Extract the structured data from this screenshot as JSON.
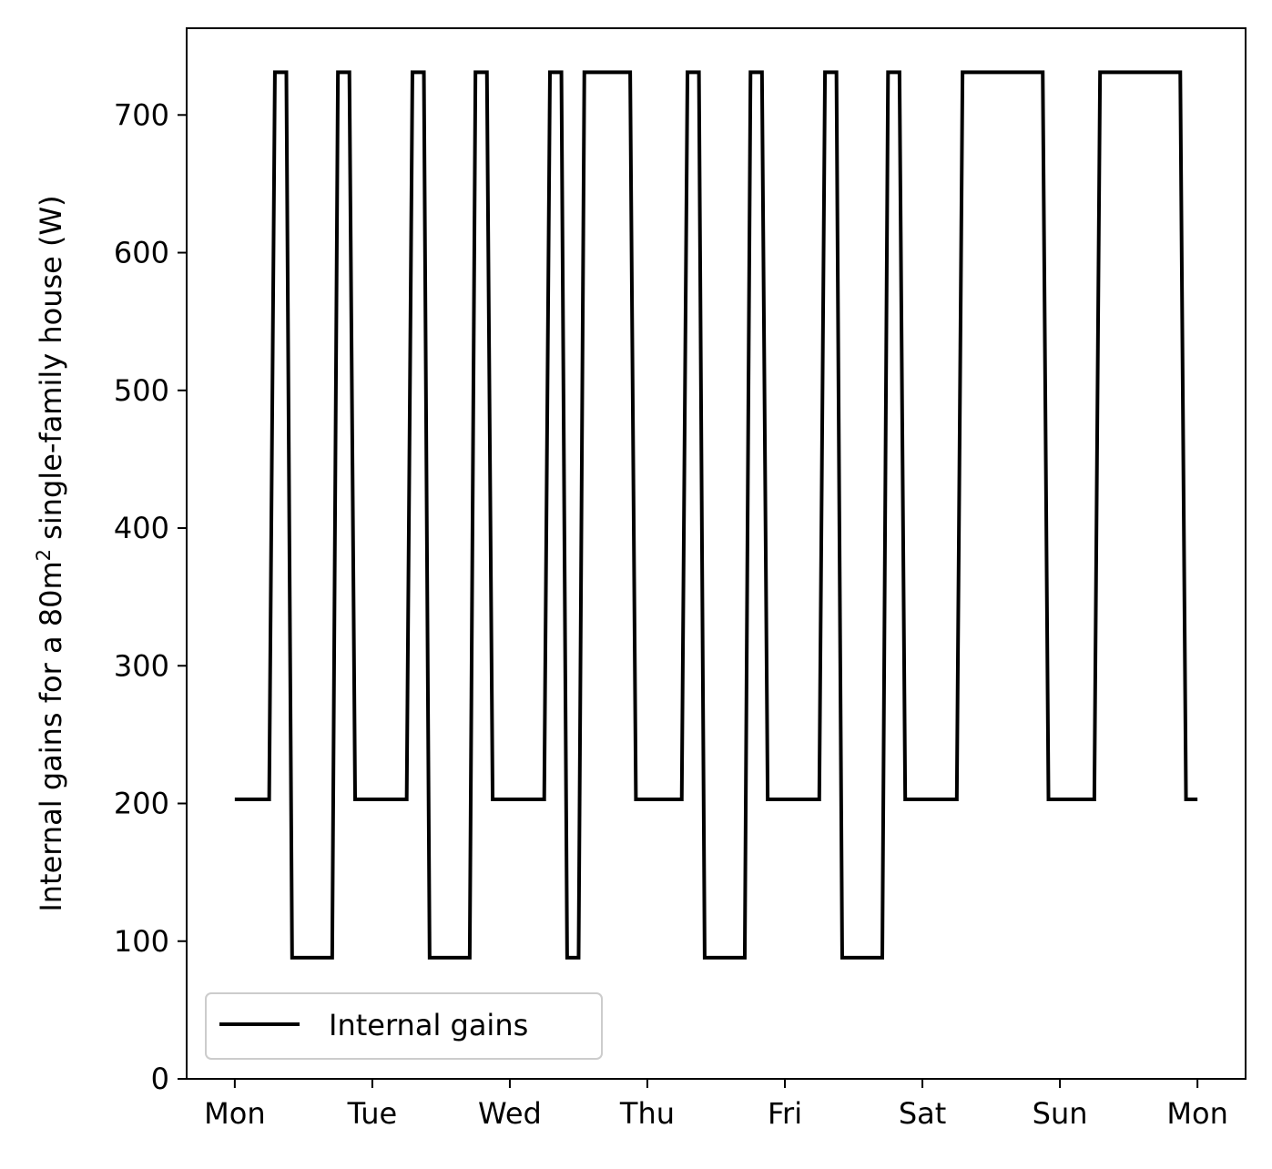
{
  "chart_data": {
    "type": "line",
    "ylabel_prefix": "Internal gains for a 80m",
    "ylabel_sup": "2",
    "ylabel_suffix": " single-family house (W)",
    "xlabel": "",
    "ylim": [
      0,
      763
    ],
    "xlim": [
      -0.35,
      7.35
    ],
    "x_unit": "days",
    "x_tick_values": [
      0,
      1,
      2,
      3,
      4,
      5,
      6,
      7
    ],
    "x_tick_labels": [
      "Mon",
      "Tue",
      "Wed",
      "Thu",
      "Fri",
      "Sat",
      "Sun",
      "Mon"
    ],
    "y_ticks": [
      0,
      100,
      200,
      300,
      400,
      500,
      600,
      700
    ],
    "grid": false,
    "legend_position": "lower-left",
    "series": [
      {
        "name": "Internal gains",
        "color": "#000000",
        "x": [
          0,
          0.25,
          0.2917,
          0.375,
          0.4167,
          0.7083,
          0.75,
          0.8333,
          0.875,
          1.0,
          1.25,
          1.2917,
          1.375,
          1.4167,
          1.7083,
          1.75,
          1.8333,
          1.875,
          2.0,
          2.25,
          2.2917,
          2.375,
          2.4167,
          2.5,
          2.5417,
          2.875,
          2.9167,
          3.0,
          3.25,
          3.2917,
          3.375,
          3.4167,
          3.7083,
          3.75,
          3.8333,
          3.875,
          4.0,
          4.25,
          4.2917,
          4.375,
          4.4167,
          4.7083,
          4.75,
          4.8333,
          4.875,
          5.0,
          5.25,
          5.2917,
          5.875,
          5.9167,
          6.25,
          6.2917,
          6.875,
          6.9167,
          7.0
        ],
        "values": [
          203,
          203,
          731,
          731,
          88,
          88,
          731,
          731,
          203,
          203,
          203,
          731,
          731,
          88,
          88,
          731,
          731,
          203,
          203,
          203,
          731,
          731,
          88,
          88,
          731,
          731,
          203,
          203,
          203,
          731,
          731,
          88,
          88,
          731,
          731,
          203,
          203,
          203,
          731,
          731,
          88,
          88,
          731,
          731,
          203,
          203,
          203,
          731,
          731,
          203,
          203,
          731,
          731,
          203,
          203
        ]
      }
    ]
  }
}
